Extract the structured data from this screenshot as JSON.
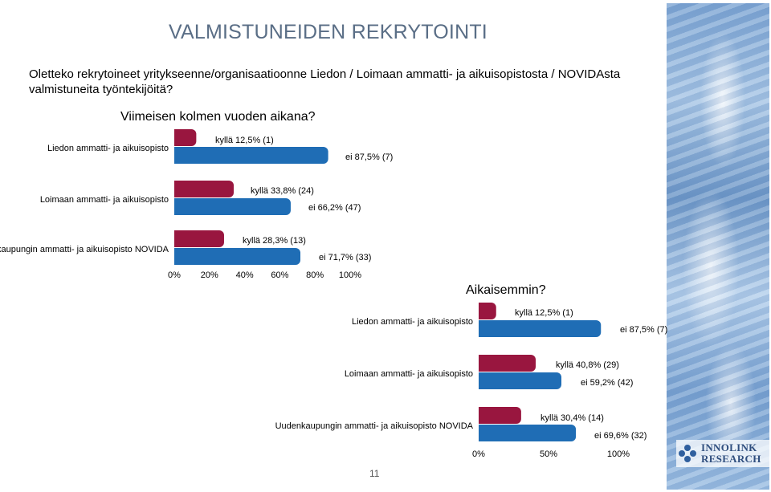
{
  "title": "VALMISTUNEIDEN REKRYTOINTI",
  "question": "Oletteko rekrytoineet yritykseenne/organisaatioonne Liedon / Loimaan ammatti- ja aikuisopistosta / NOVIDAsta valmistuneita työntekijöitä?",
  "page_number": "11",
  "logo": {
    "line1": "INNOLINK",
    "line2": "RESEARCH"
  },
  "colors": {
    "kylla": "#99163f",
    "ei": "#1f6db5"
  },
  "chart_data": [
    {
      "type": "bar",
      "orientation": "horizontal",
      "title": "Viimeisen kolmen vuoden aikana?",
      "categories": [
        "Liedon ammatti- ja aikuisopisto",
        "Loimaan ammatti- ja aikuisopisto",
        "Uudenkaupungin ammatti- ja aikuisopisto NOVIDA"
      ],
      "xlim": [
        0,
        100
      ],
      "x_ticks": [
        "0%",
        "20%",
        "40%",
        "60%",
        "80%",
        "100%"
      ],
      "series": [
        {
          "key": "kylla",
          "values": [
            12.5,
            33.8,
            28.3
          ],
          "labels": [
            "kyllä 12,5% (1)",
            "kyllä 33,8% (24)",
            "kyllä 28,3% (13)"
          ]
        },
        {
          "key": "ei",
          "values": [
            87.5,
            66.2,
            71.7
          ],
          "labels": [
            "ei 87,5% (7)",
            "ei 66,2% (47)",
            "ei 71,7% (33)"
          ]
        }
      ]
    },
    {
      "type": "bar",
      "orientation": "horizontal",
      "title": "Aikaisemmin?",
      "categories": [
        "Liedon ammatti- ja aikuisopisto",
        "Loimaan ammatti- ja aikuisopisto",
        "Uudenkaupungin ammatti- ja aikuisopisto NOVIDA"
      ],
      "xlim": [
        0,
        100
      ],
      "x_ticks": [
        "0%",
        "50%",
        "100%"
      ],
      "series": [
        {
          "key": "kylla",
          "values": [
            12.5,
            40.8,
            30.4
          ],
          "labels": [
            "kyllä 12,5% (1)",
            "kyllä 40,8% (29)",
            "kyllä 30,4% (14)"
          ]
        },
        {
          "key": "ei",
          "values": [
            87.5,
            59.2,
            69.6
          ],
          "labels": [
            "ei 87,5% (7)",
            "ei 59,2% (42)",
            "ei 69,6% (32)"
          ]
        }
      ]
    }
  ]
}
